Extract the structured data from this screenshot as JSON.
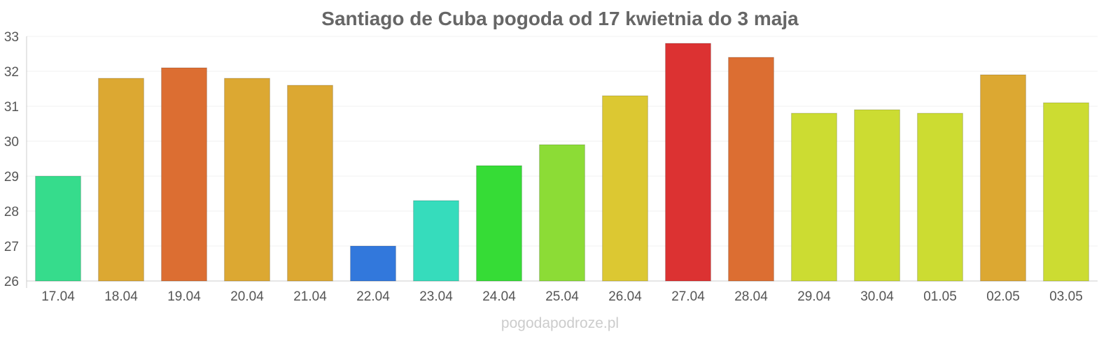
{
  "chart_data": {
    "type": "bar",
    "title": "Santiago de Cuba pogoda od 17 kwietnia do 3 maja",
    "xlabel": "",
    "ylabel": "",
    "ylim": [
      26,
      33
    ],
    "yticks": [
      "26",
      "27",
      "28",
      "29",
      "30",
      "31",
      "32",
      "33"
    ],
    "grid": true,
    "legend": "none",
    "categories": [
      "17.04",
      "18.04",
      "19.04",
      "20.04",
      "21.04",
      "22.04",
      "23.04",
      "24.04",
      "25.04",
      "26.04",
      "27.04",
      "28.04",
      "29.04",
      "30.04",
      "01.05",
      "02.05",
      "03.05"
    ],
    "series": [
      {
        "values": [
          29.0,
          31.8,
          32.1,
          31.8,
          31.6,
          27.0,
          28.3,
          29.3,
          29.9,
          31.3,
          32.8,
          32.4,
          30.8,
          30.9,
          30.8,
          31.9,
          31.1
        ],
        "colors": [
          "#36dc8c",
          "#dca832",
          "#dc6e32",
          "#dca832",
          "#dca832",
          "#3278dc",
          "#36dcbc",
          "#36dc36",
          "#8cdc36",
          "#dcc832",
          "#dc3232",
          "#dc6e32",
          "#ccdc32",
          "#ccdc32",
          "#ccdc32",
          "#dca832",
          "#ccdc32"
        ]
      }
    ]
  },
  "watermark": "pogodapodroze.pl"
}
